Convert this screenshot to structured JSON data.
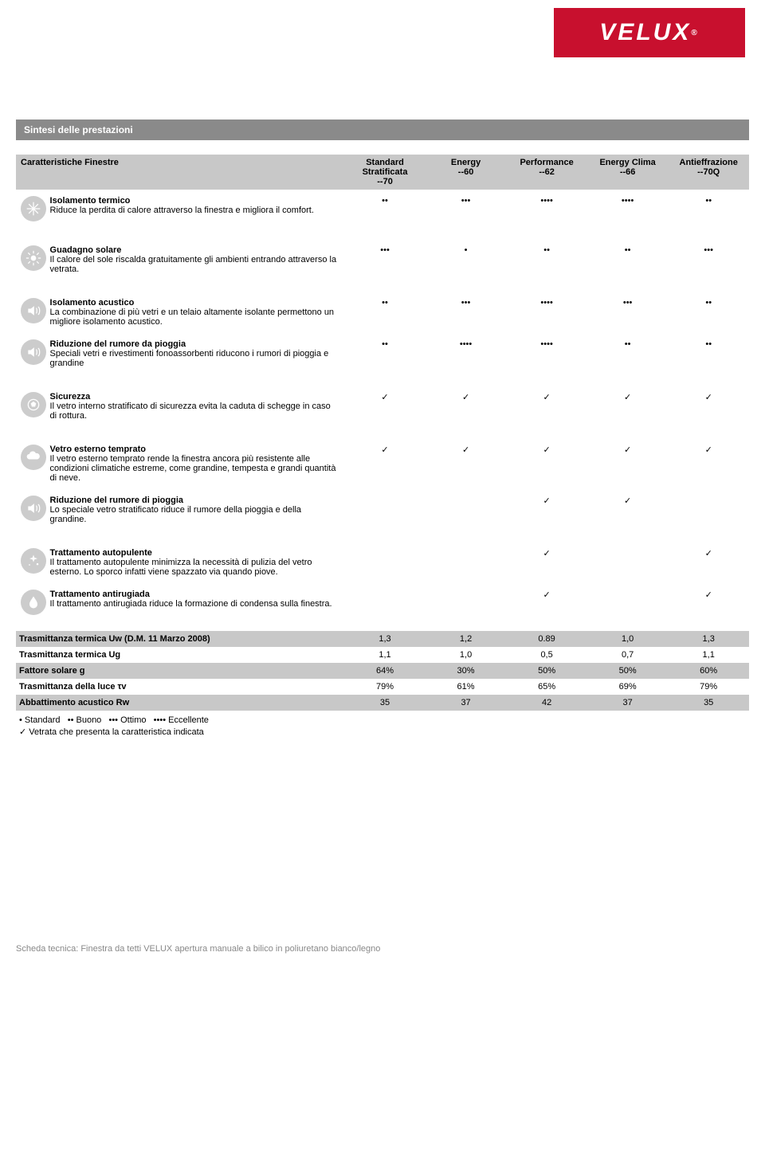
{
  "brand": "VELUX",
  "section_title": "Sintesi delle prestazioni",
  "table_header": {
    "col0": "Caratteristiche Finestre",
    "cols": [
      {
        "line1": "Standard",
        "line2": "Stratificata",
        "code": "--70"
      },
      {
        "line1": "Energy",
        "line2": "",
        "code": "--60"
      },
      {
        "line1": "Performance",
        "line2": "",
        "code": "--62"
      },
      {
        "line1": "Energy Clima",
        "line2": "",
        "code": "--66"
      },
      {
        "line1": "Antieffrazione",
        "line2": "",
        "code": "--70Q"
      }
    ]
  },
  "features": [
    {
      "icon": "snowflake",
      "title": "Isolamento termico",
      "desc": "Riduce la perdita di calore attraverso la finestra e migliora il comfort.",
      "vals": [
        "••",
        "•••",
        "••••",
        "••••",
        "••"
      ],
      "type": "dots"
    },
    {
      "icon": "sun",
      "title": "Guadagno solare",
      "desc": "Il calore del sole riscalda gratuitamente gli ambienti entrando attraverso la vetrata.",
      "vals": [
        "•••",
        "•",
        "••",
        "••",
        "•••"
      ],
      "type": "dots",
      "spacer": true
    },
    {
      "icon": "sound",
      "title": "Isolamento acustico",
      "desc": "La combinazione di più vetri e un telaio altamente isolante permettono un migliore isolamento acustico.",
      "vals": [
        "••",
        "•••",
        "••••",
        "•••",
        "••"
      ],
      "type": "dots",
      "spacer": true
    },
    {
      "icon": "sound",
      "title": "Riduzione del rumore da pioggia",
      "desc": "Speciali vetri e rivestimenti fonoassorbenti riducono i rumori di pioggia e grandine",
      "vals": [
        "••",
        "••••",
        "••••",
        "••",
        "••"
      ],
      "type": "dots"
    },
    {
      "icon": "ball",
      "title": "Sicurezza",
      "desc": "Il vetro interno stratificato di sicurezza evita la caduta di schegge in caso di rottura.",
      "vals": [
        "✓",
        "✓",
        "✓",
        "✓",
        "✓"
      ],
      "type": "check",
      "spacer": true
    },
    {
      "icon": "cloud",
      "title": "Vetro esterno temprato",
      "desc": "Il vetro esterno temprato rende la finestra ancora più resistente alle condizioni climatiche estreme, come grandine, tempesta e grandi quantità di neve.",
      "vals": [
        "✓",
        "✓",
        "✓",
        "✓",
        "✓"
      ],
      "type": "check",
      "spacer": true
    },
    {
      "icon": "sound",
      "title": "Riduzione del rumore di pioggia",
      "desc": "Lo speciale vetro stratificato riduce il rumore della pioggia e della grandine.",
      "vals": [
        "",
        "",
        "✓",
        "✓",
        ""
      ],
      "type": "check"
    },
    {
      "icon": "sparkle",
      "title": "Trattamento autopulente",
      "desc": "Il trattamento autopulente minimizza la necessità di pulizia del vetro esterno. Lo sporco infatti viene spazzato via quando piove.",
      "vals": [
        "",
        "",
        "✓",
        "",
        "✓"
      ],
      "type": "check",
      "spacer": true
    },
    {
      "icon": "drop",
      "title": "Trattamento antirugiada",
      "desc": "Il trattamento antirugiada riduce la formazione di condensa sulla finestra.",
      "vals": [
        "",
        "",
        "✓",
        "",
        "✓"
      ],
      "type": "check"
    }
  ],
  "metrics": [
    {
      "label": "Trasmittanza termica Uw (D.M. 11 Marzo 2008)",
      "vals": [
        "1,3",
        "1,2",
        "0.89",
        "1,0",
        "1,3"
      ],
      "shade": true
    },
    {
      "label": "Trasmittanza termica Ug",
      "vals": [
        "1,1",
        "1,0",
        "0,5",
        "0,7",
        "1,1"
      ],
      "shade": false
    },
    {
      "label": "Fattore solare g",
      "vals": [
        "64%",
        "30%",
        "50%",
        "50%",
        "60%"
      ],
      "shade": true
    },
    {
      "label": "Trasmittanza della luce τv",
      "vals": [
        "79%",
        "61%",
        "65%",
        "69%",
        "79%"
      ],
      "shade": false
    },
    {
      "label": "Abbattimento acustico Rw",
      "vals": [
        "35",
        "37",
        "42",
        "37",
        "35"
      ],
      "shade": true
    }
  ],
  "legend": {
    "items": [
      {
        "sym": "•",
        "label": "Standard"
      },
      {
        "sym": "••",
        "label": "Buono"
      },
      {
        "sym": "•••",
        "label": "Ottimo"
      },
      {
        "sym": "••••",
        "label": "Eccellente"
      }
    ],
    "check_text": "Vetrata che presenta la caratteristica indicata"
  },
  "footer": "Scheda tecnica: Finestra da tetti VELUX apertura manuale a bilico in poliuretano bianco/legno"
}
